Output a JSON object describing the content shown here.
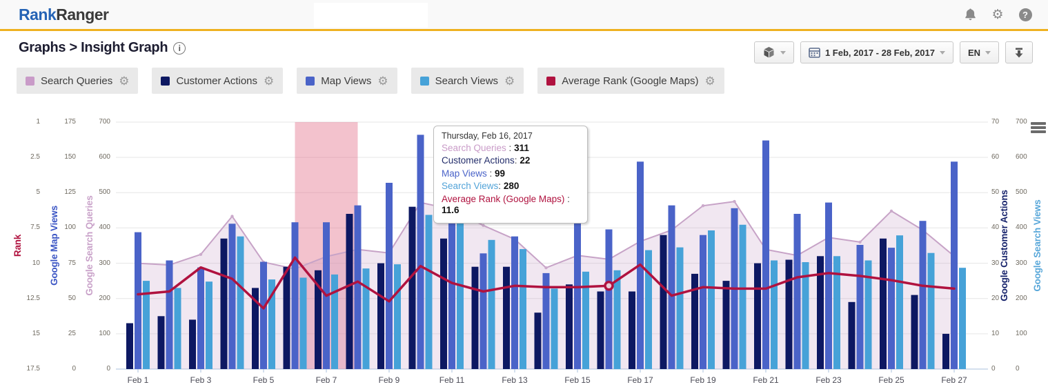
{
  "header": {
    "logo_primary": "Rank",
    "logo_secondary": "Ranger",
    "icons": [
      {
        "name": "bell-icon"
      },
      {
        "name": "gear-icon"
      },
      {
        "name": "help-icon",
        "glyph": "?"
      }
    ]
  },
  "breadcrumb": {
    "section": "Graphs",
    "separator": ">",
    "page": "Insight Graph",
    "info_icon": "i"
  },
  "toolbar": {
    "package_button": {
      "icon": "package-icon"
    },
    "date_range": "1 Feb, 2017 - 28 Feb, 2017",
    "language": "EN",
    "download_button": {
      "icon": "download-icon"
    }
  },
  "icons": {
    "gear": "⚙"
  },
  "legend": [
    {
      "label": "Search Queries",
      "color": "#c99bc8"
    },
    {
      "label": "Customer Actions",
      "color": "#0d1862"
    },
    {
      "label": "Map Views",
      "color": "#4a63c8"
    },
    {
      "label": "Search Views",
      "color": "#46a2d8"
    },
    {
      "label": "Average Rank (Google Maps)",
      "color": "#b0123f"
    }
  ],
  "tooltip": {
    "title": "Thursday, Feb 16, 2017",
    "rows": [
      {
        "label": "Search Queries",
        "sep": " : ",
        "value": "311",
        "color": "#c99bc8"
      },
      {
        "label": "Customer Actions",
        "sep": ": ",
        "value": "22",
        "color": "#242e6b"
      },
      {
        "label": "Map Views",
        "sep": " : ",
        "value": "99",
        "color": "#4a63c8"
      },
      {
        "label": "Search Views",
        "sep": ": ",
        "value": "280",
        "color": "#52a3d8"
      },
      {
        "label": "Average Rank (Google Maps)",
        "sep": " : ",
        "value": "11.6",
        "color": "#b0123f"
      }
    ]
  },
  "chart_data": {
    "type": "combo-area-bar-line",
    "x": [
      "Feb 1",
      "Feb 2",
      "Feb 3",
      "Feb 4",
      "Feb 5",
      "Feb 6",
      "Feb 7",
      "Feb 8",
      "Feb 9",
      "Feb 10",
      "Feb 11",
      "Feb 12",
      "Feb 13",
      "Feb 14",
      "Feb 15",
      "Feb 16",
      "Feb 17",
      "Feb 18",
      "Feb 19",
      "Feb 20",
      "Feb 21",
      "Feb 22",
      "Feb 23",
      "Feb 24",
      "Feb 25",
      "Feb 26",
      "Feb 27"
    ],
    "x_tick_labels": [
      "Feb 1",
      "Feb 3",
      "Feb 5",
      "Feb 7",
      "Feb 9",
      "Feb 11",
      "Feb 13",
      "Feb 15",
      "Feb 17",
      "Feb 19",
      "Feb 21",
      "Feb 23",
      "Feb 25",
      "Feb 27"
    ],
    "series": [
      {
        "name": "Search Queries",
        "type": "area",
        "axis": "Google Search Queries",
        "ylim": [
          0,
          700
        ],
        "color": "#c7a3c7",
        "fill": "rgba(201,160,199,0.25)",
        "values": [
          300,
          295,
          325,
          433,
          303,
          284,
          319,
          339,
          329,
          472,
          453,
          407,
          368,
          287,
          322,
          311,
          362,
          394,
          463,
          475,
          339,
          322,
          373,
          360,
          448,
          394,
          320
        ]
      },
      {
        "name": "Customer Actions",
        "type": "bar",
        "axis": "Google Customer Actions",
        "ylim": [
          0,
          70
        ],
        "color": "#0d1862",
        "values": [
          13,
          15,
          14,
          37,
          23,
          29,
          28,
          44,
          30,
          46,
          37,
          29,
          29,
          16,
          24,
          22,
          22,
          38,
          27,
          25,
          30,
          31,
          32,
          19,
          37,
          21,
          10
        ]
      },
      {
        "name": "Map Views",
        "type": "bar",
        "axis": "Google Map Views",
        "ylim": [
          0,
          175
        ],
        "color": "#4a63c8",
        "values": [
          97,
          77,
          72,
          103,
          76,
          104,
          104,
          116,
          132,
          166,
          108,
          82,
          94,
          68,
          118,
          99,
          147,
          116,
          95,
          114,
          162,
          110,
          118,
          88,
          86,
          105,
          147
        ]
      },
      {
        "name": "Search Views",
        "type": "bar",
        "axis": "Google Search Views",
        "ylim": [
          0,
          700
        ],
        "color": "#46a2d8",
        "values": [
          250,
          230,
          248,
          376,
          254,
          259,
          268,
          285,
          297,
          437,
          429,
          366,
          340,
          228,
          276,
          280,
          337,
          345,
          393,
          409,
          308,
          303,
          320,
          308,
          379,
          329,
          287
        ]
      },
      {
        "name": "Average Rank (Google Maps)",
        "type": "line",
        "axis": "Rank",
        "inverted": true,
        "color": "#b0123f",
        "values": [
          12.2,
          12.0,
          10.3,
          11.1,
          13.2,
          9.6,
          12.3,
          11.3,
          12.7,
          10.2,
          11.4,
          12.0,
          11.6,
          11.7,
          11.7,
          11.6,
          10.1,
          12.3,
          11.7,
          11.8,
          11.8,
          11.0,
          10.7,
          10.9,
          11.2,
          11.6,
          11.8
        ]
      }
    ],
    "axes": {
      "left": [
        {
          "label": "Rank",
          "color": "#b0123f",
          "ticks": [
            "1",
            "2.5",
            "5",
            "7.5",
            "10",
            "12.5",
            "15",
            "17.5"
          ]
        },
        {
          "label": "Google Map Views",
          "color": "#3b55c4",
          "ticks": [
            "175",
            "150",
            "125",
            "100",
            "75",
            "50",
            "25",
            "0"
          ]
        },
        {
          "label": "Google Search Queries",
          "color": "#c9a2c9",
          "ticks": [
            "700",
            "600",
            "500",
            "400",
            "300",
            "200",
            "100",
            "0"
          ]
        }
      ],
      "right": [
        {
          "label": "Google Customer Actions",
          "color": "#16226b",
          "ticks": [
            "70",
            "60",
            "50",
            "40",
            "30",
            "20",
            "10",
            "0"
          ]
        },
        {
          "label": "Google Search Views",
          "color": "#58a7d9",
          "ticks": [
            "700",
            "600",
            "500",
            "400",
            "300",
            "200",
            "100",
            "0"
          ]
        }
      ]
    },
    "highlight_band": {
      "from_day": "Feb 6",
      "to_day": "Feb 8",
      "color": "rgba(226,110,135,0.42)"
    },
    "selected_point": {
      "day": "Feb 16",
      "series": "Average Rank (Google Maps)"
    },
    "grid": true,
    "legend_position": "top-left-buttons"
  }
}
